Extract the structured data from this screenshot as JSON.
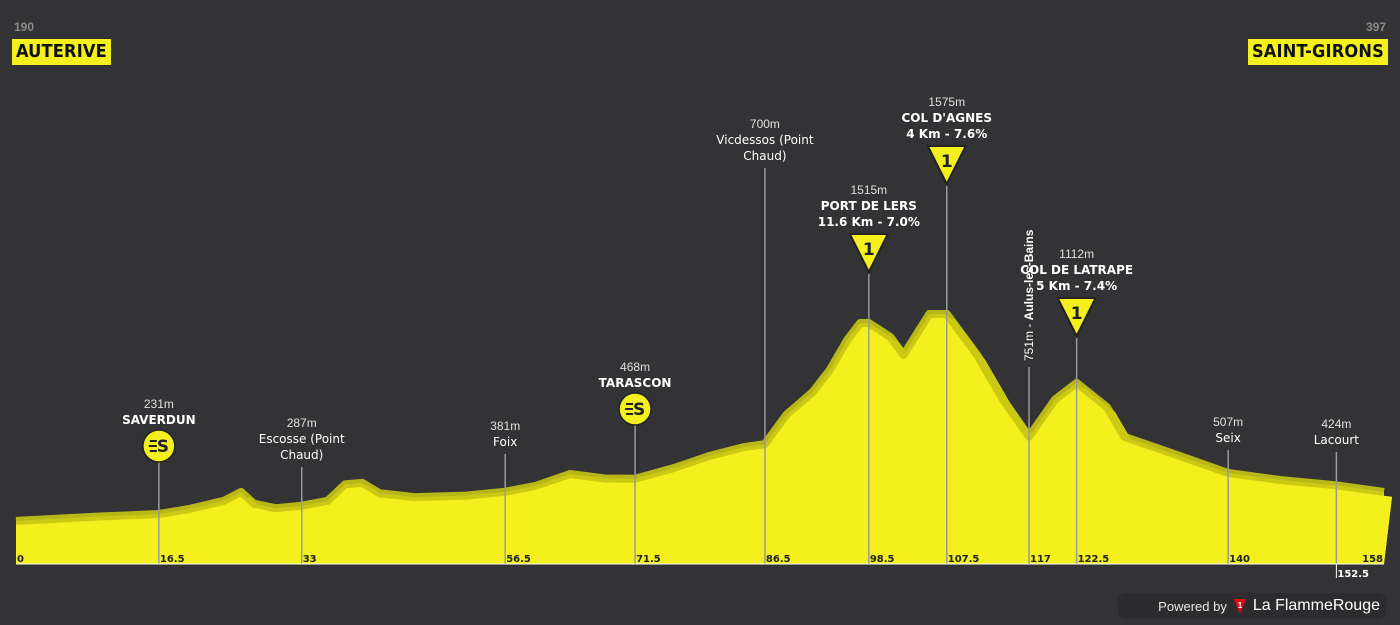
{
  "header": {
    "start": {
      "number": "190",
      "name": "AUTERIVE"
    },
    "finish": {
      "number": "397",
      "name": "SAINT-GIRONS"
    }
  },
  "footer": {
    "powered_by": "Powered by",
    "brand": "La FlammeRouge"
  },
  "colors": {
    "background": "#333335",
    "profile_fill": "#f4f01e",
    "profile_shadow": "#c8c414",
    "line": "#9a9a9a",
    "accent_red": "#e30613"
  },
  "chart_data": {
    "type": "area",
    "xlabel": "",
    "ylabel": "",
    "xlim": [
      0,
      158
    ],
    "ylim": [
      0,
      1600
    ],
    "x_ticks": [
      "0",
      "16.5",
      "33",
      "56.5",
      "71.5",
      "86.5",
      "98.5",
      "107.5",
      "117",
      "122.5",
      "140",
      "152.5",
      "158"
    ],
    "profile": [
      {
        "x": 0,
        "y": 185
      },
      {
        "x": 5,
        "y": 200
      },
      {
        "x": 10,
        "y": 215
      },
      {
        "x": 16.5,
        "y": 231
      },
      {
        "x": 20,
        "y": 265
      },
      {
        "x": 24,
        "y": 320
      },
      {
        "x": 26,
        "y": 380
      },
      {
        "x": 27.5,
        "y": 300
      },
      {
        "x": 30,
        "y": 270
      },
      {
        "x": 33,
        "y": 287
      },
      {
        "x": 36,
        "y": 320
      },
      {
        "x": 38,
        "y": 430
      },
      {
        "x": 40,
        "y": 440
      },
      {
        "x": 42,
        "y": 370
      },
      {
        "x": 46,
        "y": 345
      },
      {
        "x": 52,
        "y": 355
      },
      {
        "x": 56.5,
        "y": 381
      },
      {
        "x": 60,
        "y": 420
      },
      {
        "x": 64,
        "y": 500
      },
      {
        "x": 68,
        "y": 470
      },
      {
        "x": 71.5,
        "y": 468
      },
      {
        "x": 76,
        "y": 540
      },
      {
        "x": 80,
        "y": 620
      },
      {
        "x": 84,
        "y": 680
      },
      {
        "x": 86.5,
        "y": 700
      },
      {
        "x": 89,
        "y": 900
      },
      {
        "x": 92,
        "y": 1050
      },
      {
        "x": 94,
        "y": 1200
      },
      {
        "x": 96,
        "y": 1400
      },
      {
        "x": 97.5,
        "y": 1515
      },
      {
        "x": 98.5,
        "y": 1515
      },
      {
        "x": 101,
        "y": 1420
      },
      {
        "x": 102.5,
        "y": 1300
      },
      {
        "x": 105.5,
        "y": 1575
      },
      {
        "x": 107.5,
        "y": 1575
      },
      {
        "x": 111,
        "y": 1300
      },
      {
        "x": 114,
        "y": 1000
      },
      {
        "x": 117,
        "y": 751
      },
      {
        "x": 120,
        "y": 1000
      },
      {
        "x": 122.5,
        "y": 1112
      },
      {
        "x": 126,
        "y": 950
      },
      {
        "x": 128,
        "y": 750
      },
      {
        "x": 133,
        "y": 650
      },
      {
        "x": 140,
        "y": 507
      },
      {
        "x": 146,
        "y": 460
      },
      {
        "x": 152.5,
        "y": 424
      },
      {
        "x": 158,
        "y": 380
      }
    ],
    "markers": [
      {
        "x": 16.5,
        "tick": "16.5",
        "altitude": "231m",
        "name": [
          "SAVERDUN"
        ],
        "bold": true,
        "icon": "sprint-icon",
        "stem_top": 460
      },
      {
        "x": 33,
        "tick": "33",
        "altitude": "287m",
        "name": [
          "Escosse (Point",
          "Chaud)"
        ],
        "bold": false,
        "icon": "",
        "stem_top": 467
      },
      {
        "x": 56.5,
        "tick": "56.5",
        "altitude": "381m",
        "name": [
          "Foix"
        ],
        "bold": false,
        "icon": "",
        "stem_top": 454
      },
      {
        "x": 71.5,
        "tick": "71.5",
        "altitude": "468m",
        "name": [
          "TARASCON"
        ],
        "bold": true,
        "icon": "sprint-icon",
        "stem_top": 423
      },
      {
        "x": 86.5,
        "tick": "86.5",
        "altitude": "700m",
        "name": [
          "Vicdessos (Point",
          "Chaud)"
        ],
        "bold": false,
        "icon": "",
        "stem_top": 168
      },
      {
        "x": 98.5,
        "tick": "98.5",
        "altitude": "1515m",
        "name": [
          "PORT DE LERS",
          "11.6 Km - 7.0%"
        ],
        "bold": true,
        "icon": "climb-cat1-icon",
        "category": "1",
        "stem_top": 274
      },
      {
        "x": 107.5,
        "tick": "107.5",
        "altitude": "1575m",
        "name": [
          "COL D'AGNES",
          "4 Km - 7.6%"
        ],
        "bold": true,
        "icon": "climb-cat1-icon",
        "category": "1",
        "stem_top": 186
      },
      {
        "x": 117,
        "tick": "117",
        "altitude": "751m",
        "name": [
          "Aulus-les-Bains"
        ],
        "bold": false,
        "icon": "",
        "vertical": true,
        "stem_top": 367
      },
      {
        "x": 122.5,
        "tick": "122.5",
        "altitude": "1112m",
        "name": [
          "COL DE LATRAPE",
          "5 Km - 7.4%"
        ],
        "bold": true,
        "icon": "climb-cat1-icon",
        "category": "1",
        "stem_top": 338
      },
      {
        "x": 140,
        "tick": "140",
        "altitude": "507m",
        "name": [
          "Seix"
        ],
        "bold": false,
        "icon": "",
        "stem_top": 450
      },
      {
        "x": 152.5,
        "tick": "152.5",
        "altitude": "424m",
        "name": [
          "Lacourt"
        ],
        "bold": false,
        "icon": "",
        "stem_top": 452
      }
    ]
  }
}
